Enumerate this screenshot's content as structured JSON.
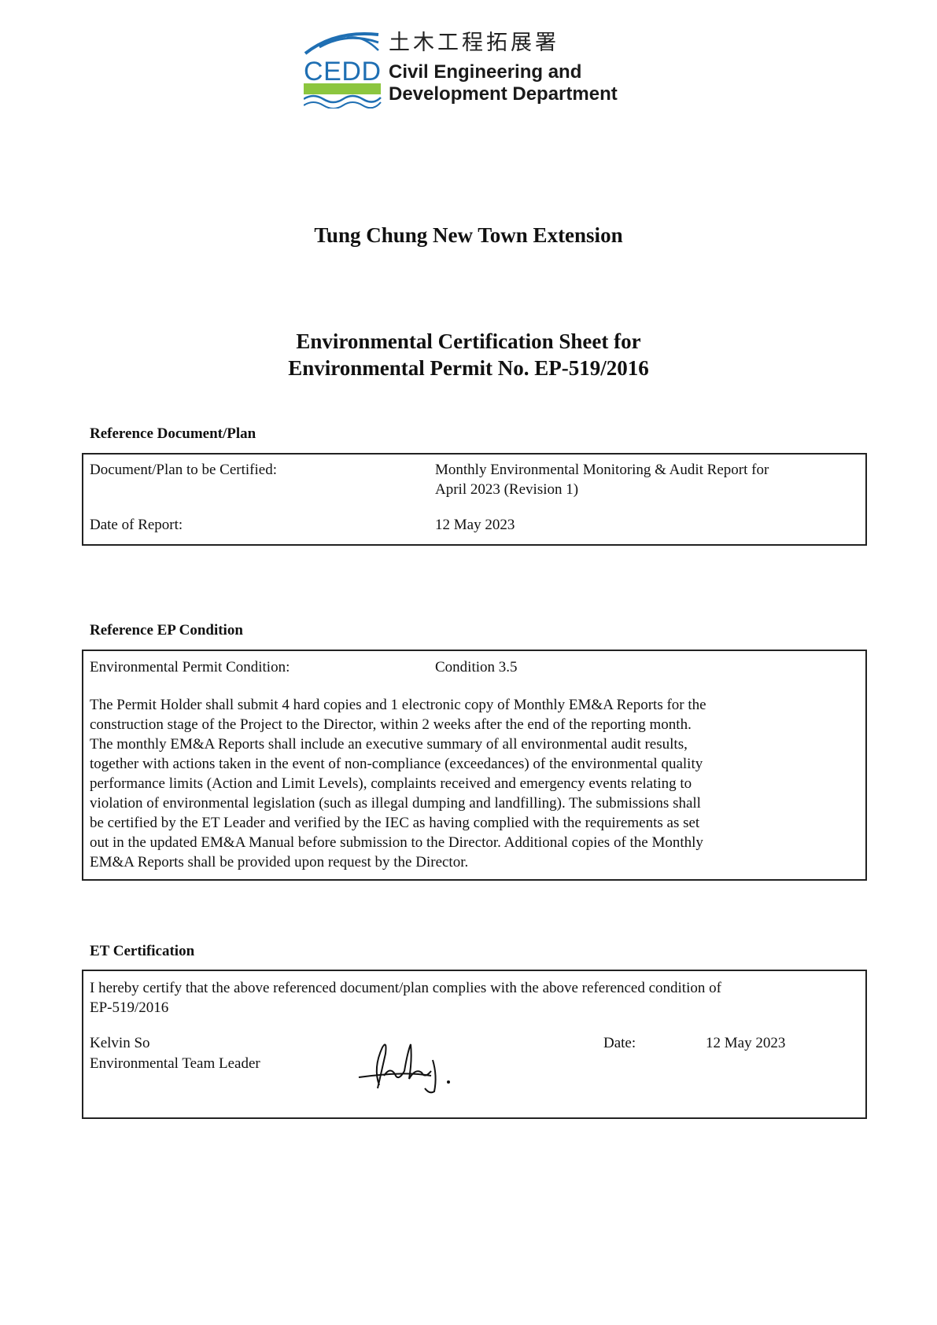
{
  "logo": {
    "abbr": "CEDD",
    "chinese": "土木工程拓展署",
    "english_line1": "Civil Engineering and",
    "english_line2": "Development Department",
    "colors": {
      "blue": "#1f6fb3",
      "green": "#8cc63f"
    }
  },
  "project_title": "Tung Chung New Town Extension",
  "sheet_title_line1": "Environmental Certification Sheet for",
  "sheet_title_line2": "Environmental Permit No. EP-519/2016",
  "reference_document": {
    "heading": "Reference Document/Plan",
    "doc_label": "Document/Plan to be Certified:",
    "doc_value_line1": "Monthly Environmental Monitoring & Audit Report for",
    "doc_value_line2": "April 2023 (Revision 1)",
    "date_label": "Date of Report:",
    "date_value": "12 May 2023"
  },
  "reference_ep": {
    "heading": "Reference EP Condition",
    "condition_label": "Environmental Permit Condition:",
    "condition_value": "Condition 3.5",
    "paragraph_lines": [
      "The Permit Holder shall submit 4 hard copies and 1 electronic copy of Monthly EM&A Reports for the",
      "construction stage of the Project to the Director, within 2 weeks after the end of the reporting month.",
      "The monthly EM&A Reports shall include an executive summary of all environmental audit results,",
      "together with actions taken in the event of non-compliance (exceedances) of the environmental quality",
      "performance limits (Action and Limit Levels), complaints received and emergency events relating to",
      "violation of environmental legislation (such as illegal dumping and landfilling).  The submissions shall",
      "be certified by the ET Leader and verified by the IEC as having complied with the requirements as set",
      "out in the updated EM&A Manual before submission to the Director.  Additional copies of the Monthly",
      "EM&A Reports shall be provided upon request by the Director."
    ]
  },
  "et_certification": {
    "heading": "ET Certification",
    "statement_line1": "I hereby certify that the above referenced document/plan complies with the above referenced condition of",
    "statement_line2": "EP-519/2016",
    "name": "Kelvin So",
    "role": "Environmental Team Leader",
    "date_label": "Date:",
    "date_value": "12 May 2023",
    "signature": "Kelvin"
  }
}
